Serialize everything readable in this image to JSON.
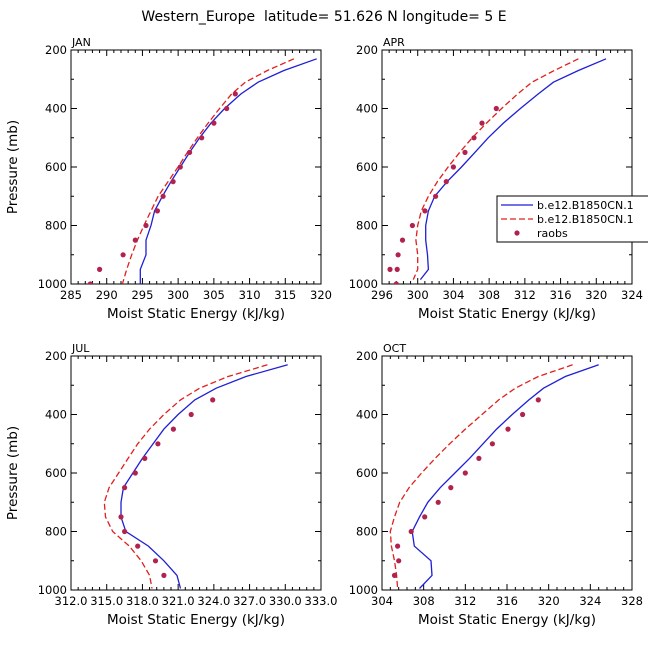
{
  "figure": {
    "title": "Western_Europe  latitude= 51.626 N longitude= 5 E"
  },
  "legend": {
    "entries": [
      "b.e12.B1850CN.1",
      "b.e12.B1850CN.1",
      "raobs"
    ],
    "placement": "right of APR panel"
  },
  "colors": {
    "series1": "#1f1fd6",
    "series2": "#e0201c",
    "raobs": "#b2224f"
  },
  "chart_data": [
    {
      "type": "line",
      "title": "JAN",
      "xlabel": "Moist Static Energy (kJ/kg)",
      "ylabel": "Pressure (mb)",
      "xlim": [
        285,
        320
      ],
      "ylim": [
        1000,
        200
      ],
      "xticks": [
        "285",
        "290",
        "295",
        "300",
        "305",
        "310",
        "315",
        "320"
      ],
      "yticks": [
        "200",
        "400",
        "600",
        "800",
        "1000"
      ],
      "pressure": [
        230,
        270,
        310,
        350,
        400,
        450,
        500,
        550,
        600,
        650,
        700,
        750,
        800,
        850,
        900,
        950,
        1000
      ],
      "series": [
        {
          "name": "b.e12.B1850CN.1",
          "values": [
            319.4,
            314.8,
            311.2,
            308.8,
            306.5,
            304.6,
            303.0,
            301.6,
            300.3,
            299.0,
            297.8,
            296.7,
            296.2,
            295.5,
            295.5,
            294.7,
            294.7
          ]
        },
        {
          "name": "b.e12.B1850CN.1",
          "values": [
            316.2,
            312.5,
            309.4,
            307.5,
            305.8,
            304.2,
            302.7,
            301.3,
            300.0,
            298.6,
            297.2,
            296.2,
            295.2,
            294.3,
            293.5,
            292.8,
            292.2
          ]
        },
        {
          "name": "raobs",
          "x": [
            308.0,
            306.8,
            305.0,
            303.3,
            301.6,
            300.3,
            299.3,
            297.9,
            297.1,
            295.5,
            294.0,
            292.3,
            289.0,
            287.7
          ],
          "y": [
            350,
            400,
            450,
            500,
            550,
            600,
            650,
            700,
            750,
            800,
            850,
            900,
            950,
            1000
          ]
        }
      ]
    },
    {
      "type": "line",
      "title": "APR",
      "xlabel": "Moist Static Energy (kJ/kg)",
      "ylabel": "",
      "xlim": [
        296,
        324
      ],
      "ylim": [
        1000,
        200
      ],
      "xticks": [
        "296",
        "300",
        "304",
        "308",
        "312",
        "316",
        "320",
        "324"
      ],
      "yticks": [
        "200",
        "400",
        "600",
        "800",
        "1000"
      ],
      "pressure": [
        230,
        270,
        310,
        350,
        400,
        450,
        500,
        550,
        600,
        650,
        700,
        750,
        800,
        850,
        900,
        950,
        985
      ],
      "series": [
        {
          "name": "b.e12.B1850CN.1",
          "values": [
            321.1,
            318.0,
            315.2,
            313.5,
            311.5,
            309.6,
            307.9,
            306.4,
            304.9,
            303.3,
            301.9,
            301.2,
            300.9,
            300.9,
            301.1,
            301.2,
            300.3
          ]
        },
        {
          "name": "b.e12.B1850CN.1",
          "values": [
            318.0,
            315.3,
            312.8,
            311.2,
            309.4,
            307.7,
            306.1,
            304.7,
            303.4,
            302.2,
            301.2,
            300.4,
            300.0,
            299.8,
            300.0,
            300.0,
            299.5
          ]
        },
        {
          "name": "raobs",
          "x": [
            308.8,
            307.2,
            306.3,
            305.3,
            304.0,
            303.2,
            302.0,
            300.8,
            299.4,
            298.3,
            297.8,
            297.7,
            297.6,
            296.9
          ],
          "y": [
            400,
            450,
            500,
            550,
            600,
            650,
            700,
            750,
            800,
            850,
            900,
            950,
            1000,
            950
          ]
        }
      ]
    },
    {
      "type": "line",
      "title": "JUL",
      "xlabel": "Moist Static Energy (kJ/kg)",
      "ylabel": "Pressure (mb)",
      "xlim": [
        312.0,
        333.0
      ],
      "ylim": [
        1000,
        200
      ],
      "xticks": [
        "312.0",
        "315.0",
        "318.0",
        "321.0",
        "324.0",
        "327.0",
        "330.0",
        "333.0"
      ],
      "yticks": [
        "200",
        "400",
        "600",
        "800",
        "1000"
      ],
      "pressure": [
        230,
        270,
        310,
        350,
        400,
        450,
        500,
        550,
        600,
        650,
        700,
        750,
        800,
        850,
        900,
        950,
        995
      ],
      "series": [
        {
          "name": "b.e12.B1850CN.1",
          "values": [
            330.2,
            326.7,
            324.2,
            322.4,
            321.0,
            319.8,
            318.9,
            318.0,
            317.2,
            316.4,
            316.2,
            316.2,
            316.6,
            318.5,
            319.8,
            320.9,
            321.2
          ]
        },
        {
          "name": "b.e12.B1850CN.1",
          "values": [
            328.5,
            325.2,
            322.8,
            321.2,
            319.8,
            318.6,
            317.6,
            316.8,
            316.0,
            315.2,
            314.8,
            314.9,
            315.5,
            316.9,
            317.9,
            318.6,
            318.8
          ]
        },
        {
          "name": "raobs",
          "x": [
            323.9,
            322.1,
            320.6,
            319.3,
            318.2,
            317.4,
            316.5,
            316.2,
            316.5,
            317.6,
            319.1,
            319.8
          ],
          "y": [
            350,
            400,
            450,
            500,
            550,
            600,
            650,
            750,
            800,
            850,
            900,
            950
          ]
        }
      ]
    },
    {
      "type": "line",
      "title": "OCT",
      "xlabel": "Moist Static Energy (kJ/kg)",
      "ylabel": "",
      "xlim": [
        304,
        328
      ],
      "ylim": [
        1000,
        200
      ],
      "xticks": [
        "304",
        "308",
        "312",
        "316",
        "320",
        "324",
        "328"
      ],
      "yticks": [
        "200",
        "400",
        "600",
        "800",
        "1000"
      ],
      "pressure": [
        230,
        270,
        310,
        350,
        400,
        450,
        500,
        550,
        600,
        650,
        700,
        750,
        800,
        850,
        900,
        950,
        995
      ],
      "series": [
        {
          "name": "b.e12.B1850CN.1",
          "values": [
            324.8,
            321.6,
            319.5,
            318.1,
            316.5,
            315.0,
            313.7,
            312.4,
            311.0,
            309.6,
            308.4,
            307.6,
            306.9,
            307.1,
            308.7,
            308.8,
            307.6
          ]
        },
        {
          "name": "b.e12.B1850CN.1",
          "values": [
            322.3,
            319.0,
            316.8,
            315.2,
            313.6,
            312.0,
            310.5,
            309.1,
            307.8,
            306.6,
            305.7,
            305.2,
            304.8,
            304.9,
            305.2,
            305.4,
            305.5
          ]
        },
        {
          "name": "raobs",
          "x": [
            319.0,
            317.5,
            316.1,
            314.6,
            313.3,
            312.0,
            310.6,
            309.4,
            308.1,
            306.8,
            305.5,
            305.6,
            305.2
          ],
          "y": [
            350,
            400,
            450,
            500,
            550,
            600,
            650,
            700,
            750,
            800,
            850,
            900,
            950
          ]
        }
      ]
    }
  ]
}
